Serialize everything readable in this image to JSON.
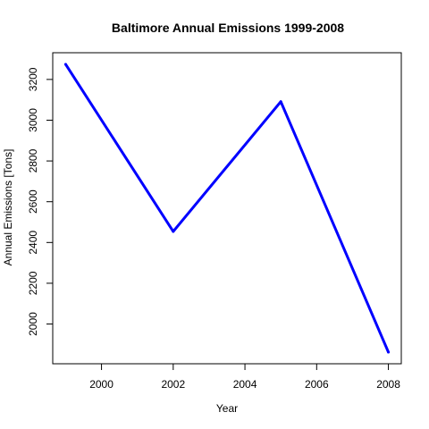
{
  "chart_data": {
    "type": "line",
    "title": "Baltimore Annual Emissions 1999-2008",
    "xlabel": "Year",
    "ylabel": "Annual Emissions [Tons]",
    "x": [
      1999,
      2002,
      2005,
      2008
    ],
    "series": [
      {
        "values": [
          3274,
          2454,
          3091,
          1862
        ],
        "color": "#0000ff"
      }
    ],
    "xlim": [
      1998.64,
      2008.36
    ],
    "ylim": [
      1805,
      3331
    ],
    "xticks": [
      2000,
      2002,
      2004,
      2006,
      2008
    ],
    "yticks": [
      2000,
      2200,
      2400,
      2600,
      2800,
      3000,
      3200
    ],
    "grid": false,
    "legend": "none"
  }
}
